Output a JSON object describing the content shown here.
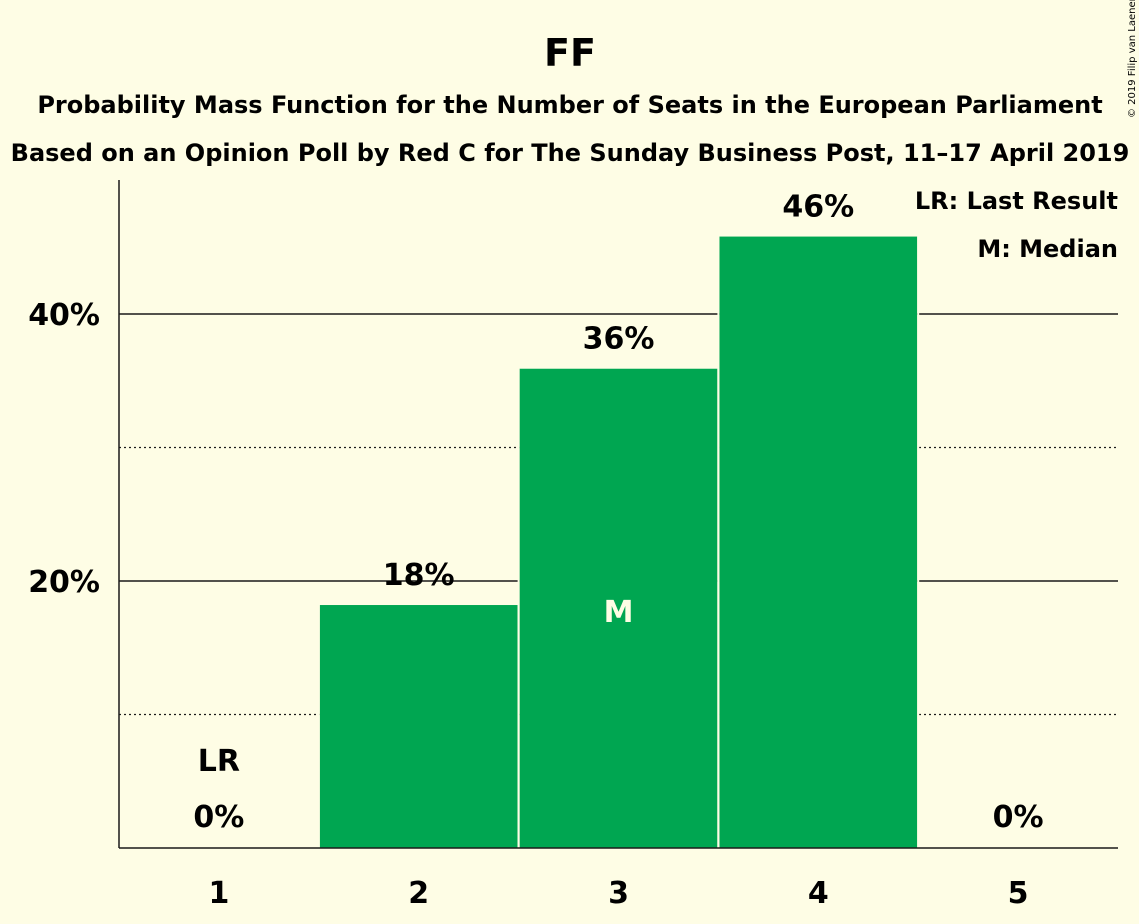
{
  "chart_data": {
    "type": "bar",
    "title": "FF",
    "subtitle_lines": [
      "Probability Mass Function for the Number of Seats in the European Parliament",
      "Based on an Opinion Poll by Red C for The Sunday Business Post, 11–17 April 2019"
    ],
    "categories": [
      "1",
      "2",
      "3",
      "4",
      "5"
    ],
    "values": [
      0,
      18.2,
      35.9,
      45.8,
      0
    ],
    "value_labels": [
      "0%",
      "18%",
      "36%",
      "46%",
      "0%"
    ],
    "y_ticks": [
      {
        "value": 20,
        "label": "20%"
      },
      {
        "value": 40,
        "label": "40%"
      }
    ],
    "y_minor_gridlines": [
      10,
      30
    ],
    "ylim": [
      0,
      50
    ],
    "bar_color": "#00a651",
    "markers": {
      "last_result": {
        "category": "1",
        "text": "LR"
      },
      "median": {
        "category": "3",
        "text": "M"
      }
    },
    "legend": [
      "LR: Last Result",
      "M: Median"
    ],
    "legend_position": "top-right",
    "copyright": "© 2019 Filip van Laenen"
  }
}
